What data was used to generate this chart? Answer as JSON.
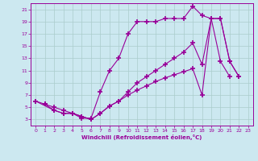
{
  "xlabel": "Windchill (Refroidissement éolien,°C)",
  "ylabel": "",
  "background_color": "#cce8f0",
  "line_color": "#990099",
  "grid_color": "#aacccc",
  "xlim": [
    -0.5,
    23.5
  ],
  "ylim": [
    2,
    22
  ],
  "xticks": [
    0,
    1,
    2,
    3,
    4,
    5,
    6,
    7,
    8,
    9,
    10,
    11,
    12,
    13,
    14,
    15,
    16,
    17,
    18,
    19,
    20,
    21,
    22,
    23
  ],
  "yticks": [
    3,
    5,
    7,
    9,
    11,
    13,
    15,
    17,
    19,
    21
  ],
  "line1_x": [
    0,
    1,
    2,
    3,
    4,
    5,
    6,
    7,
    8,
    9,
    10,
    11,
    12,
    13,
    14,
    15,
    16,
    17,
    18,
    19,
    20,
    21
  ],
  "line1_y": [
    6,
    5.5,
    5,
    4.5,
    4,
    3.2,
    3.2,
    7.5,
    11,
    13,
    17,
    19,
    19,
    19,
    19.5,
    19.5,
    19.5,
    21.5,
    20,
    19.5,
    12.5,
    10
  ],
  "line2_x": [
    1,
    2,
    3,
    4,
    5,
    6,
    7,
    8,
    9,
    10,
    11,
    12,
    13,
    14,
    15,
    16,
    17,
    18,
    19,
    20,
    21,
    22
  ],
  "line2_y": [
    5.5,
    4.5,
    4,
    4,
    3.5,
    3,
    4,
    5.2,
    6,
    7.5,
    9,
    10,
    11,
    12,
    13,
    14,
    15.5,
    12,
    19.5,
    19.5,
    12.5,
    10
  ],
  "line3_x": [
    0,
    2,
    3,
    4,
    5,
    6,
    7,
    8,
    9,
    10,
    11,
    12,
    13,
    14,
    15,
    16,
    17,
    18,
    19,
    20,
    21,
    22,
    23
  ],
  "line3_y": [
    6,
    4.5,
    4,
    4,
    3.5,
    3,
    4,
    5.2,
    6,
    7,
    7.8,
    8.5,
    9.2,
    9.8,
    10.3,
    10.8,
    11.3,
    7,
    19.5,
    19.5,
    12.5,
    10,
    null
  ]
}
